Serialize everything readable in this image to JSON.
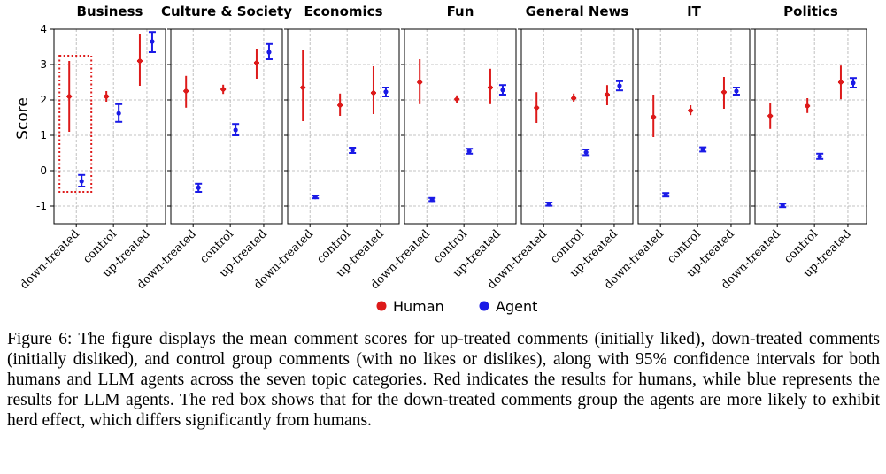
{
  "chart_data": {
    "type": "errorbar",
    "ylabel": "Score",
    "ylim": [
      -1.5,
      4
    ],
    "yticks": [
      -1,
      0,
      1,
      2,
      3,
      4
    ],
    "categories": [
      "down-treated",
      "control",
      "up-treated"
    ],
    "grid": true,
    "legend_position": "bottom-center",
    "series_colors": {
      "Human": "#dd1a1a",
      "Agent": "#1a1ae6"
    },
    "legend": [
      "Human",
      "Agent"
    ],
    "highlight_box": {
      "panel": "Business",
      "category": "down-treated",
      "color": "#dd1a1a",
      "style": "dotted"
    },
    "panels": [
      {
        "title": "Business",
        "human": [
          {
            "mean": 2.1,
            "low": 1.1,
            "high": 3.1
          },
          {
            "mean": 2.1,
            "low": 1.95,
            "high": 2.25
          },
          {
            "mean": 3.1,
            "low": 2.4,
            "high": 3.85
          }
        ],
        "agent": [
          {
            "mean": -0.3,
            "low": -0.45,
            "high": -0.12
          },
          {
            "mean": 1.62,
            "low": 1.38,
            "high": 1.88
          },
          {
            "mean": 3.65,
            "low": 3.35,
            "high": 3.92
          }
        ]
      },
      {
        "title": "Culture & Society",
        "human": [
          {
            "mean": 2.25,
            "low": 1.78,
            "high": 2.68
          },
          {
            "mean": 2.3,
            "low": 2.17,
            "high": 2.43
          },
          {
            "mean": 3.05,
            "low": 2.6,
            "high": 3.45
          }
        ],
        "agent": [
          {
            "mean": -0.48,
            "low": -0.6,
            "high": -0.37
          },
          {
            "mean": 1.15,
            "low": 1.0,
            "high": 1.32
          },
          {
            "mean": 3.35,
            "low": 3.15,
            "high": 3.58
          }
        ]
      },
      {
        "title": "Economics",
        "human": [
          {
            "mean": 2.35,
            "low": 1.4,
            "high": 3.42
          },
          {
            "mean": 1.85,
            "low": 1.55,
            "high": 2.18
          },
          {
            "mean": 2.2,
            "low": 1.6,
            "high": 2.95
          }
        ],
        "agent": [
          {
            "mean": -0.74,
            "low": -0.78,
            "high": -0.7
          },
          {
            "mean": 0.57,
            "low": 0.5,
            "high": 0.65
          },
          {
            "mean": 2.23,
            "low": 2.1,
            "high": 2.35
          }
        ]
      },
      {
        "title": "Fun",
        "human": [
          {
            "mean": 2.5,
            "low": 1.88,
            "high": 3.15
          },
          {
            "mean": 2.02,
            "low": 1.9,
            "high": 2.13
          },
          {
            "mean": 2.35,
            "low": 1.88,
            "high": 2.88
          }
        ],
        "agent": [
          {
            "mean": -0.82,
            "low": -0.86,
            "high": -0.77
          },
          {
            "mean": 0.55,
            "low": 0.48,
            "high": 0.62
          },
          {
            "mean": 2.28,
            "low": 2.15,
            "high": 2.42
          }
        ]
      },
      {
        "title": "General News",
        "human": [
          {
            "mean": 1.78,
            "low": 1.35,
            "high": 2.22
          },
          {
            "mean": 2.05,
            "low": 1.95,
            "high": 2.18
          },
          {
            "mean": 2.15,
            "low": 1.85,
            "high": 2.42
          }
        ],
        "agent": [
          {
            "mean": -0.95,
            "low": -0.99,
            "high": -0.9
          },
          {
            "mean": 0.52,
            "low": 0.44,
            "high": 0.6
          },
          {
            "mean": 2.4,
            "low": 2.27,
            "high": 2.53
          }
        ]
      },
      {
        "title": "IT",
        "human": [
          {
            "mean": 1.52,
            "low": 0.95,
            "high": 2.15
          },
          {
            "mean": 1.7,
            "low": 1.57,
            "high": 1.85
          },
          {
            "mean": 2.22,
            "low": 1.75,
            "high": 2.65
          }
        ],
        "agent": [
          {
            "mean": -0.68,
            "low": -0.73,
            "high": -0.63
          },
          {
            "mean": 0.6,
            "low": 0.54,
            "high": 0.66
          },
          {
            "mean": 2.25,
            "low": 2.15,
            "high": 2.35
          }
        ]
      },
      {
        "title": "Politics",
        "human": [
          {
            "mean": 1.55,
            "low": 1.18,
            "high": 1.92
          },
          {
            "mean": 1.83,
            "low": 1.63,
            "high": 2.05
          },
          {
            "mean": 2.5,
            "low": 2.02,
            "high": 2.97
          }
        ],
        "agent": [
          {
            "mean": -0.98,
            "low": -1.03,
            "high": -0.93
          },
          {
            "mean": 0.4,
            "low": 0.33,
            "high": 0.48
          },
          {
            "mean": 2.48,
            "low": 2.35,
            "high": 2.62
          }
        ]
      }
    ]
  },
  "caption": "Figure 6: The figure displays the mean comment scores for up-treated comments (initially liked), down-treated comments (initially disliked), and control group comments (with no likes or dislikes), along with 95% confidence intervals for both humans and LLM agents across the seven topic categories. Red indicates the results for humans, while blue represents the results for LLM agents. The red box shows that for the down-treated comments group the agents are more likely to exhibit herd effect, which differs significantly from humans."
}
